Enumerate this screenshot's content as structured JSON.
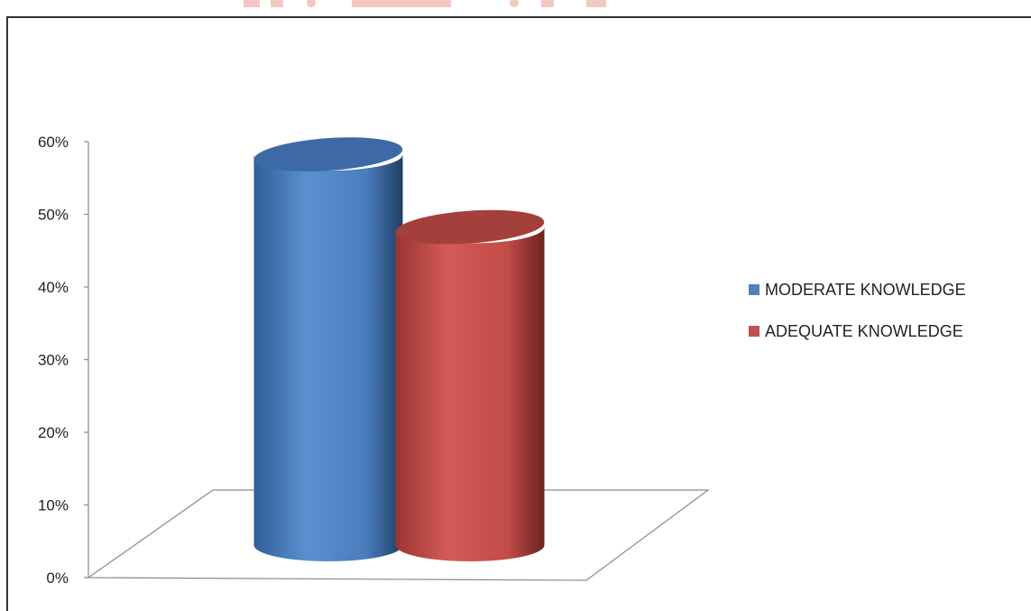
{
  "chart_data": {
    "type": "bar",
    "title": "",
    "xlabel": "",
    "ylabel": "",
    "ylim": [
      0,
      60
    ],
    "y_ticks": [
      "0%",
      "10%",
      "20%",
      "30%",
      "40%",
      "50%",
      "60%"
    ],
    "series": [
      {
        "name": "MODERATE KNOWLEDGE",
        "values": [
          58
        ],
        "color": "#4F81BD"
      },
      {
        "name": "ADEQUATE KNOWLEDGE",
        "values": [
          48
        ],
        "color": "#C0504D"
      }
    ],
    "legend_position": "right",
    "style": "3d-cylinder",
    "grid": false
  },
  "legend": {
    "items": [
      {
        "label": "MODERATE KNOWLEDGE",
        "color": "#4F81BD"
      },
      {
        "label": "ADEQUATE KNOWLEDGE",
        "color": "#C0504D"
      }
    ]
  }
}
